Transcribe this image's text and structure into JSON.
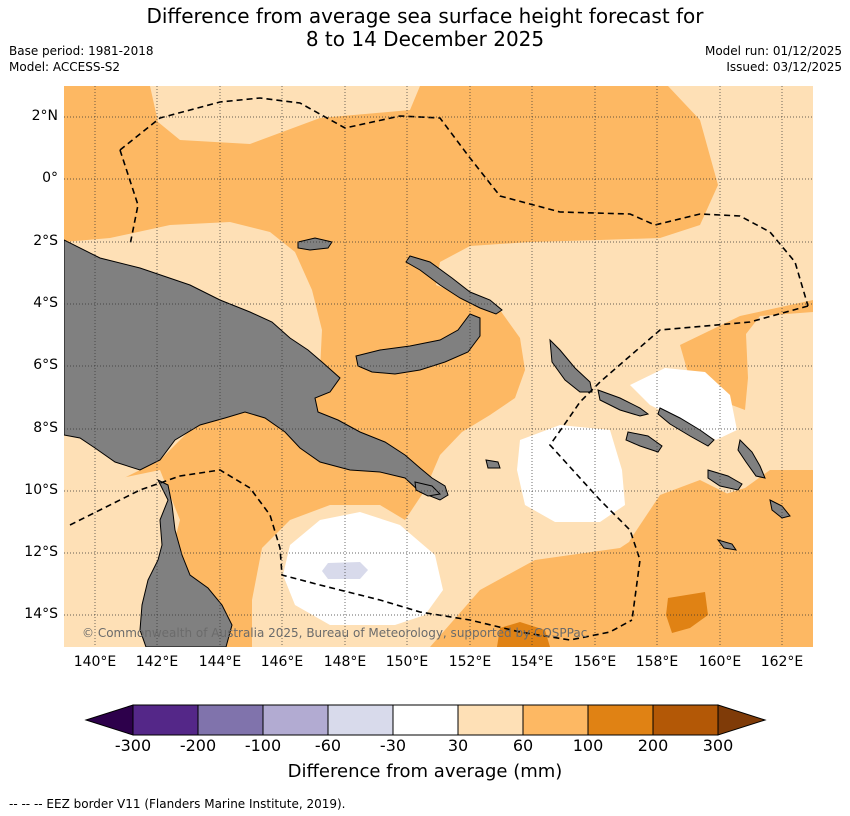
{
  "title_line1": "Difference from average sea surface height forecast for",
  "title_line2": "8 to 14 December 2025",
  "base_period": "Base period: 1981-2018",
  "model": "Model: ACCESS-S2",
  "model_run": "Model run: 01/12/2025",
  "issued": "Issued: 03/12/2025",
  "lat_labels": [
    "2°N",
    "0°",
    "2°S",
    "4°S",
    "6°S",
    "8°S",
    "10°S",
    "12°S",
    "14°S"
  ],
  "lon_labels": [
    "140°E",
    "142°E",
    "144°E",
    "146°E",
    "148°E",
    "150°E",
    "152°E",
    "154°E",
    "156°E",
    "158°E",
    "160°E",
    "162°E"
  ],
  "credit": "© Commonwealth of Australia 2025, Bureau of Meteorology, supported by COSPPac",
  "colorbar": {
    "ticks": [
      "-300",
      "-200",
      "-100",
      "-60",
      "-30",
      "30",
      "60",
      "100",
      "200",
      "300"
    ],
    "colors": [
      "#2d004b",
      "#542788",
      "#8073ac",
      "#b2abd2",
      "#d8daeb",
      "#ffffff",
      "#fee0b6",
      "#fdb863",
      "#e08214",
      "#b35806",
      "#7f3b08"
    ],
    "title": "Difference from average (mm)"
  },
  "footer": "--  --  -- EEZ border V11 (Flanders Marine Institute, 2019).",
  "legend_colors": {
    "land": "#808080",
    "light_orange": "#fee0b6",
    "mid_orange": "#fdb863",
    "dark_orange": "#e08214",
    "pale_purple": "#d8daeb"
  }
}
